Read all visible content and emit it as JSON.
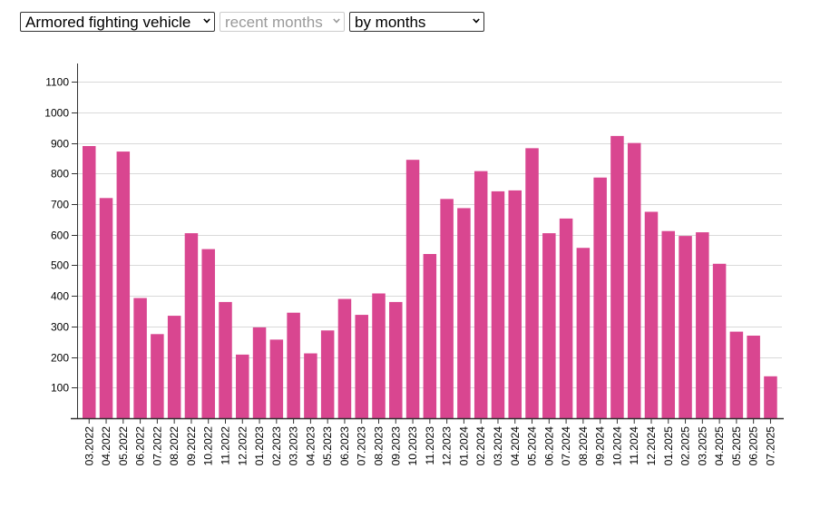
{
  "controls": {
    "category_select": {
      "value": "Armored fighting vehicle"
    },
    "period_select": {
      "value": "recent months",
      "disabled": true
    },
    "grouping_select": {
      "value": "by months"
    }
  },
  "colors": {
    "bar": "#d94690",
    "grid": "#d9d9d9",
    "axis": "#333333"
  },
  "icons": {
    "dropdown": "chevron-down-icon"
  },
  "chart_data": {
    "type": "bar",
    "title": "",
    "xlabel": "",
    "ylabel": "",
    "ylim": [
      0,
      1160
    ],
    "yticks": [
      100,
      200,
      300,
      400,
      500,
      600,
      700,
      800,
      900,
      1000,
      1100
    ],
    "grid": true,
    "categories": [
      "03.2022",
      "04.2022",
      "05.2022",
      "06.2022",
      "07.2022",
      "08.2022",
      "09.2022",
      "10.2022",
      "11.2022",
      "12.2022",
      "01.2023",
      "02.2023",
      "03.2023",
      "04.2023",
      "05.2023",
      "06.2023",
      "07.2023",
      "08.2023",
      "09.2023",
      "10.2023",
      "11.2023",
      "12.2023",
      "01.2024",
      "02.2024",
      "03.2024",
      "04.2024",
      "05.2024",
      "06.2024",
      "07.2024",
      "08.2024",
      "09.2024",
      "10.2024",
      "11.2024",
      "12.2024",
      "01.2025",
      "02.2025",
      "03.2025",
      "04.2025",
      "05.2025",
      "06.2025",
      "07.2025"
    ],
    "values": [
      890,
      720,
      872,
      393,
      275,
      335,
      605,
      553,
      380,
      208,
      297,
      257,
      345,
      212,
      287,
      390,
      338,
      408,
      380,
      845,
      537,
      717,
      687,
      808,
      742,
      745,
      883,
      605,
      653,
      557,
      787,
      923,
      900,
      675,
      612,
      596,
      608,
      505,
      283,
      270,
      137
    ]
  }
}
